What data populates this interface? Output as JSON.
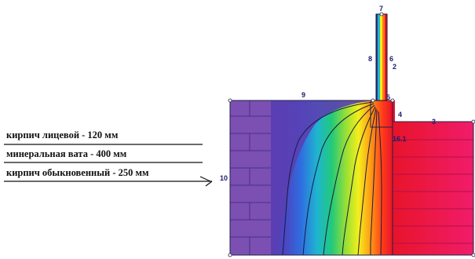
{
  "legend": [
    {
      "label": "кирпич лицевой - 120 мм"
    },
    {
      "label": "минеральная вата - 400 мм"
    },
    {
      "label": "кирпич обыкновенный - 250 мм"
    }
  ],
  "node_labels": [
    "7",
    "8",
    "6",
    "2",
    "9",
    "5",
    "4",
    "3",
    "16.1",
    "10"
  ],
  "colors": {
    "brick_left": "#7a4fb0",
    "insulation": "#5a3fb2",
    "brick_right": "#ec2a6a",
    "isoline": "#1a1a40",
    "label": "#1a1f6e",
    "legend_line": "#111111"
  }
}
